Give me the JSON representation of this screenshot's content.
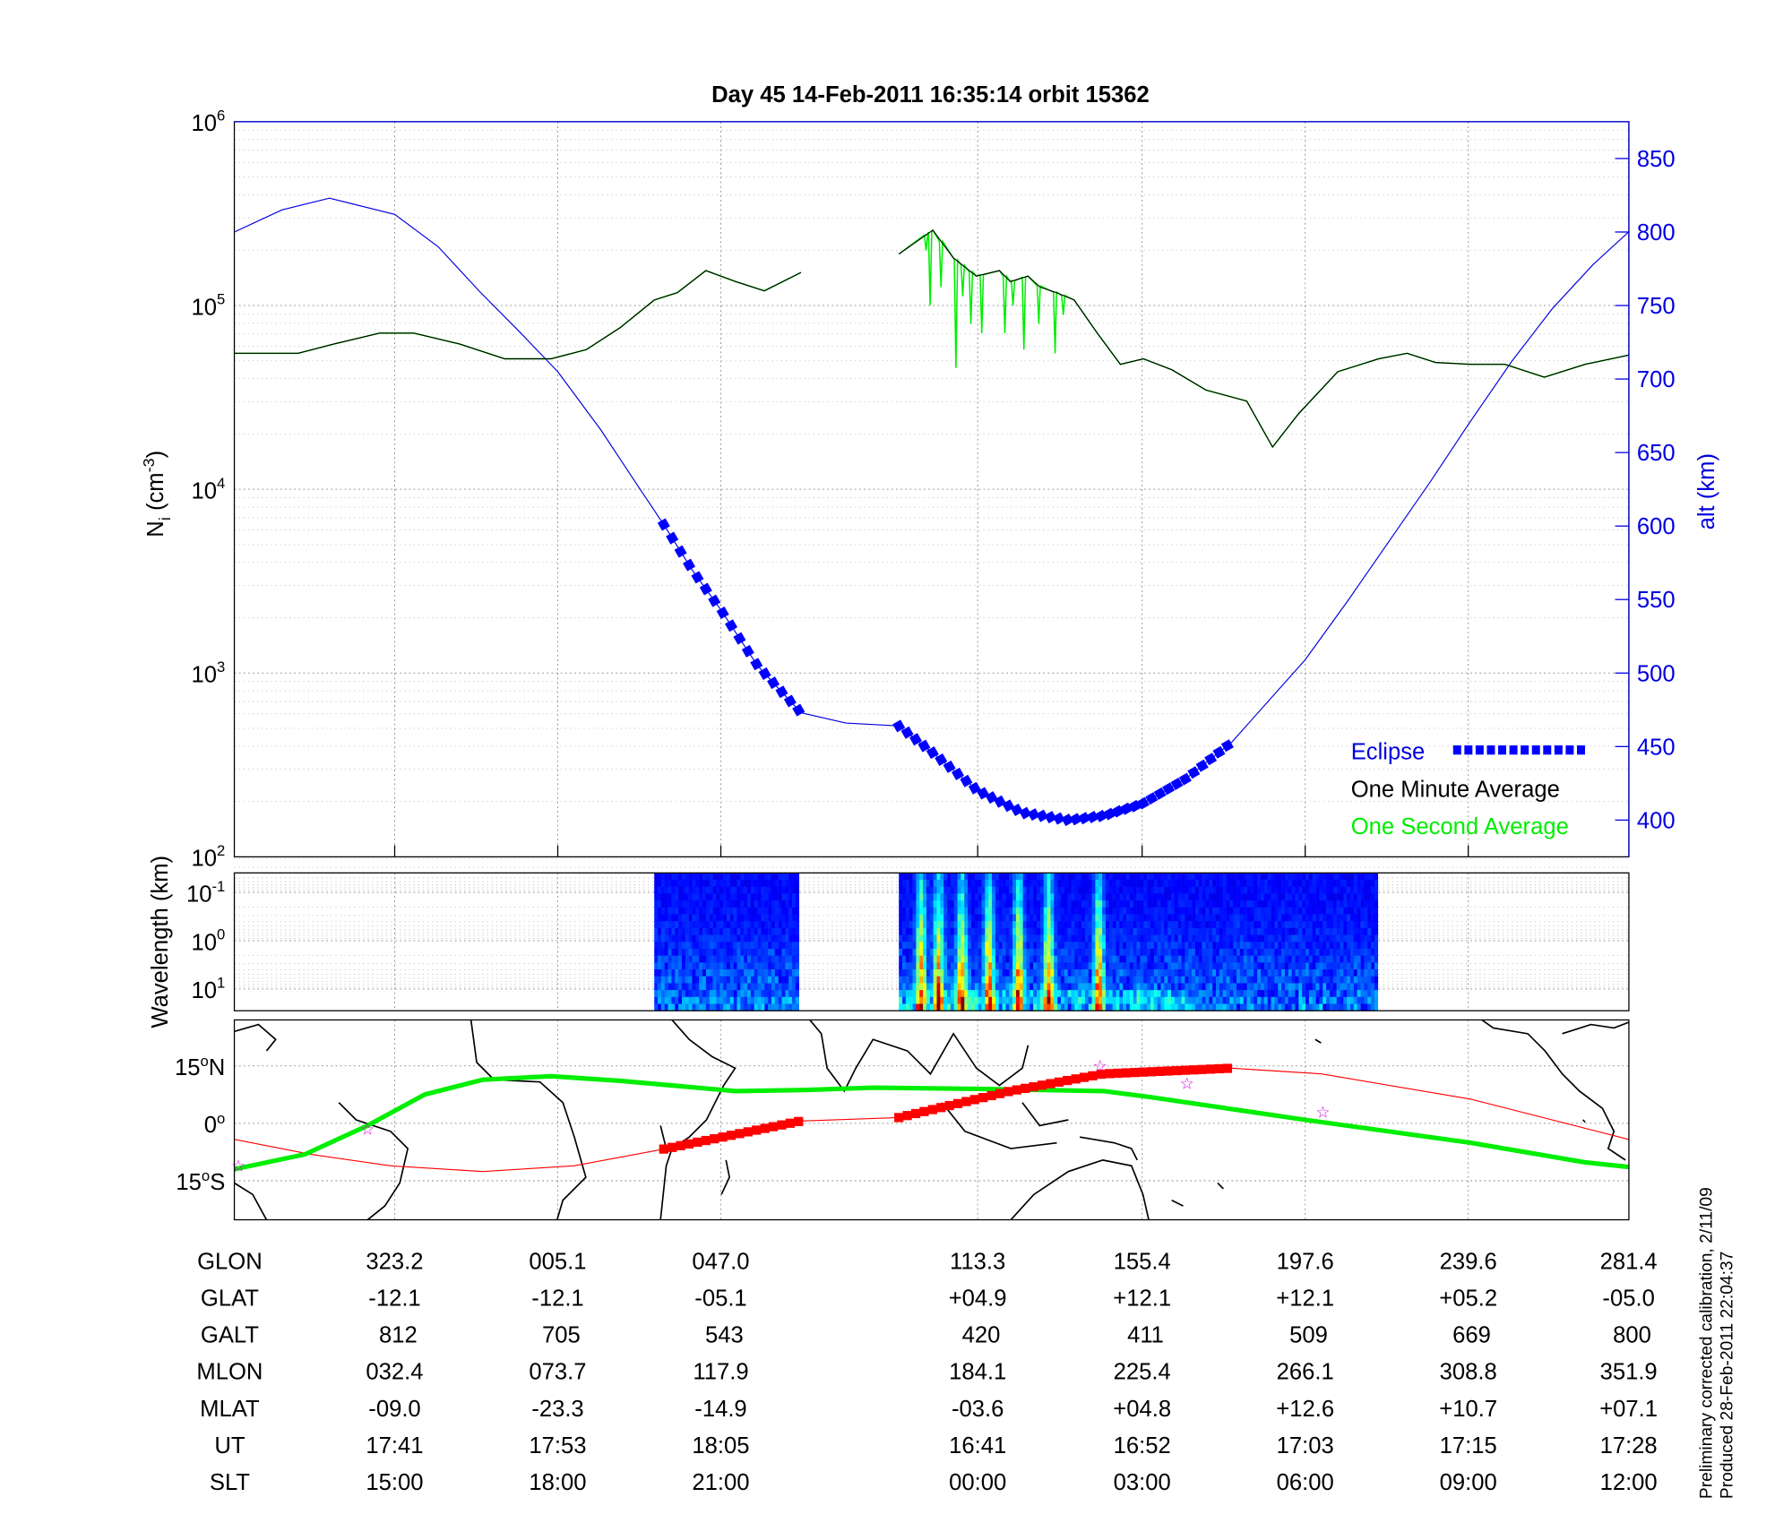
{
  "title": "Day 45  14-Feb-2011 16:35:14   orbit 15362",
  "colors": {
    "alt": "#0000e0",
    "eclipse": "#0000ff",
    "minute": "#000000",
    "second": "#00ee00",
    "track_red": "#ff0000",
    "mag_green": "#00ee00",
    "star": "#dd00dd"
  },
  "chart_data": [
    {
      "type": "line",
      "name": "density-altitude",
      "x_units": "minutes from plot start",
      "xlim": [
        0,
        102.6
      ],
      "ylabel": "N_i (cm^-3)",
      "ylabel_main": "N",
      "ylabel_sub": "i",
      "ylabel_unit": " (cm",
      "ylabel_exp": "-3",
      "ylabel_close": ")",
      "yscale": "log",
      "ylim_log10": [
        2,
        6
      ],
      "ytick_labels": [
        {
          "base": "10",
          "exp": "2",
          "v": 2
        },
        {
          "base": "10",
          "exp": "3",
          "v": 3
        },
        {
          "base": "10",
          "exp": "4",
          "v": 4
        },
        {
          "base": "10",
          "exp": "5",
          "v": 5
        },
        {
          "base": "10",
          "exp": "6",
          "v": 6
        }
      ],
      "y2label": "alt (km)",
      "y2lim": [
        380,
        875
      ],
      "y2ticks": [
        "400",
        "450",
        "500",
        "550",
        "600",
        "650",
        "700",
        "750",
        "800",
        "850"
      ],
      "series": [
        {
          "name": "One Minute Average",
          "axis": "left",
          "log10_values": [
            [
              0,
              4.74
            ],
            [
              4.7,
              4.74
            ],
            [
              7.3,
              4.79
            ],
            [
              10.7,
              4.85
            ],
            [
              13.2,
              4.85
            ],
            [
              16.6,
              4.79
            ],
            [
              19.9,
              4.71
            ],
            [
              23.3,
              4.71
            ],
            [
              25.9,
              4.76
            ],
            [
              28.4,
              4.88
            ],
            [
              30.9,
              5.03
            ],
            [
              32.6,
              5.07
            ],
            [
              34.7,
              5.19
            ],
            [
              36.9,
              5.13
            ],
            [
              39.0,
              5.08
            ],
            [
              41.7,
              5.18
            ],
            null,
            [
              48.9,
              5.28
            ],
            [
              51.4,
              5.41
            ],
            [
              52.9,
              5.26
            ],
            [
              54.6,
              5.16
            ],
            [
              56.3,
              5.19
            ],
            [
              57.1,
              5.13
            ],
            [
              58.4,
              5.16
            ],
            [
              59.3,
              5.1
            ],
            [
              60.5,
              5.07
            ],
            [
              61.8,
              5.03
            ],
            [
              63.5,
              4.85
            ],
            [
              65.2,
              4.68
            ],
            [
              66.9,
              4.71
            ],
            [
              69.0,
              4.65
            ],
            [
              71.5,
              4.54
            ],
            [
              74.5,
              4.48
            ],
            [
              76.4,
              4.23
            ],
            [
              78.3,
              4.41
            ],
            [
              81.2,
              4.64
            ],
            [
              84.2,
              4.71
            ],
            [
              86.3,
              4.74
            ],
            [
              88.4,
              4.69
            ],
            [
              91.0,
              4.68
            ],
            [
              93.5,
              4.68
            ],
            [
              96.4,
              4.61
            ],
            [
              99.4,
              4.68
            ],
            [
              102.6,
              4.73
            ]
          ]
        },
        {
          "name": "One Second Average",
          "axis": "left",
          "spikes": [
            [
              50.9,
              5.3
            ],
            [
              51.2,
              5.0
            ],
            [
              52.0,
              5.1
            ],
            [
              53.1,
              4.66
            ],
            [
              53.6,
              5.05
            ],
            [
              54.2,
              4.9
            ],
            [
              55.0,
              4.85
            ],
            [
              56.7,
              4.85
            ],
            [
              57.3,
              5.0
            ],
            [
              58.1,
              4.76
            ],
            [
              59.2,
              4.9
            ],
            [
              60.4,
              4.74
            ],
            [
              61.0,
              4.95
            ]
          ]
        },
        {
          "name": "alt",
          "axis": "right",
          "values": [
            [
              0,
              800
            ],
            [
              3.5,
              815
            ],
            [
              7,
              823
            ],
            [
              11.8,
              812
            ],
            [
              15,
              790
            ],
            [
              18,
              760
            ],
            [
              21,
              732
            ],
            [
              23.8,
              705
            ],
            [
              27,
              665
            ],
            [
              29.5,
              630
            ],
            [
              31.6,
              601
            ],
            [
              33.7,
              570
            ],
            [
              35.8,
              543
            ],
            [
              38.5,
              505
            ],
            [
              41.7,
              473
            ],
            [
              45,
              466
            ],
            [
              48.9,
              464
            ],
            [
              51.5,
              445
            ],
            [
              54.7,
              420
            ],
            [
              58,
              405
            ],
            [
              61.4,
              400
            ],
            [
              64,
              403
            ],
            [
              66.8,
              411
            ],
            [
              70,
              428
            ],
            [
              73.4,
              453
            ],
            [
              76,
              480
            ],
            [
              78.8,
              509
            ],
            [
              82,
              550
            ],
            [
              85,
              590
            ],
            [
              88,
              630
            ],
            [
              90.8,
              669
            ],
            [
              94,
              712
            ],
            [
              97,
              748
            ],
            [
              100,
              778
            ],
            [
              102.6,
              800
            ]
          ]
        }
      ],
      "eclipse_ranges": [
        [
          31.6,
          41.7
        ],
        [
          48.9,
          73.4
        ]
      ],
      "legend": {
        "placement": "bottom-right",
        "items": [
          "Eclipse",
          "One Minute Average",
          "One Second Average"
        ]
      }
    },
    {
      "type": "heatmap",
      "name": "spectrogram",
      "ylabel": "Wavelength (km)",
      "ytick_labels": [
        {
          "base": "10",
          "exp": "-1"
        },
        {
          "base": "10",
          "exp": "0"
        },
        {
          "base": "10",
          "exp": "1"
        }
      ],
      "data_ranges": [
        [
          30.9,
          41.4
        ],
        [
          48.9,
          83.9
        ]
      ],
      "intense_bursts": [
        50.4,
        51.7,
        53.4,
        55.4,
        57.6,
        59.8,
        63.5
      ]
    },
    {
      "type": "line",
      "name": "ground-track-map",
      "ytick_labels": [
        {
          "deg": "15",
          "suf": "N",
          "lat": 15
        },
        {
          "deg": "0",
          "suf": "",
          "lat": 0
        },
        {
          "deg": "15",
          "suf": "S",
          "lat": -15
        }
      ],
      "series": [
        {
          "name": "magnetic-equator",
          "values": [
            [
              0,
              -12
            ],
            [
              5.2,
              -8.1
            ],
            [
              9.8,
              -0.6
            ],
            [
              14.0,
              7.5
            ],
            [
              18.3,
              11.4
            ],
            [
              23.3,
              12.3
            ],
            [
              28.4,
              11.1
            ],
            [
              36.9,
              8.4
            ],
            [
              42.0,
              8.7
            ],
            [
              47.0,
              9.3
            ],
            [
              54.7,
              9.0
            ],
            [
              64.0,
              8.4
            ],
            [
              67.3,
              6.9
            ],
            [
              78.8,
              0.9
            ],
            [
              91.0,
              -5.1
            ],
            [
              99.4,
              -10.2
            ],
            [
              102.6,
              -11.4
            ]
          ]
        },
        {
          "name": "satellite-track",
          "values": [
            [
              0,
              -4.2
            ],
            [
              5.6,
              -8.1
            ],
            [
              11.5,
              -11.1
            ],
            [
              18.3,
              -12.6
            ],
            [
              25.0,
              -11.1
            ],
            [
              31.8,
              -6.6
            ],
            [
              41.7,
              0.6
            ],
            [
              48.9,
              1.5
            ],
            [
              57.1,
              8.4
            ],
            [
              63.9,
              12.9
            ],
            [
              73.4,
              14.4
            ],
            [
              80.0,
              12.9
            ],
            [
              91.0,
              6.3
            ],
            [
              102.6,
              -4.2
            ]
          ]
        }
      ],
      "stars": [
        [
          0.3,
          -11.1
        ],
        [
          9.8,
          -1.5
        ],
        [
          63.7,
          15
        ],
        [
          70.1,
          10.5
        ],
        [
          80.1,
          3.0
        ]
      ],
      "track_highlight_ranges": [
        [
          31.6,
          41.7
        ],
        [
          48.9,
          73.4
        ]
      ]
    }
  ],
  "table": {
    "columns_x_minutes": [
      11.8,
      23.8,
      35.8,
      54.7,
      66.8,
      78.8,
      90.8,
      102.6
    ],
    "rows": [
      {
        "label": "GLON",
        "values": [
          "323.2",
          "005.1",
          "047.0",
          "113.3",
          "155.4",
          "197.6",
          "239.6",
          "281.4"
        ]
      },
      {
        "label": "GLAT",
        "values": [
          "-12.1",
          "-12.1",
          "-05.1",
          "+04.9",
          "+12.1",
          "+12.1",
          "+05.2",
          "-05.0"
        ]
      },
      {
        "label": "GALT",
        "values": [
          "812",
          "705",
          "543",
          "420",
          "411",
          "509",
          "669",
          "800"
        ]
      },
      {
        "label": "MLON",
        "values": [
          "032.4",
          "073.7",
          "117.9",
          "184.1",
          "225.4",
          "266.1",
          "308.8",
          "351.9"
        ]
      },
      {
        "label": "MLAT",
        "values": [
          "-09.0",
          "-23.3",
          "-14.9",
          "-03.6",
          "+04.8",
          "+12.6",
          "+10.7",
          "+07.1"
        ]
      },
      {
        "label": "UT",
        "values": [
          "17:41",
          "17:53",
          "18:05",
          "16:41",
          "16:52",
          "17:03",
          "17:15",
          "17:28"
        ]
      },
      {
        "label": "SLT",
        "values": [
          "15:00",
          "18:00",
          "21:00",
          "00:00",
          "03:00",
          "06:00",
          "09:00",
          "12:00"
        ]
      }
    ]
  },
  "footer": {
    "line1": "Preliminary corrected calibration, 2/11/09",
    "line2": "Produced 28-Feb-2011 22:04:37"
  }
}
